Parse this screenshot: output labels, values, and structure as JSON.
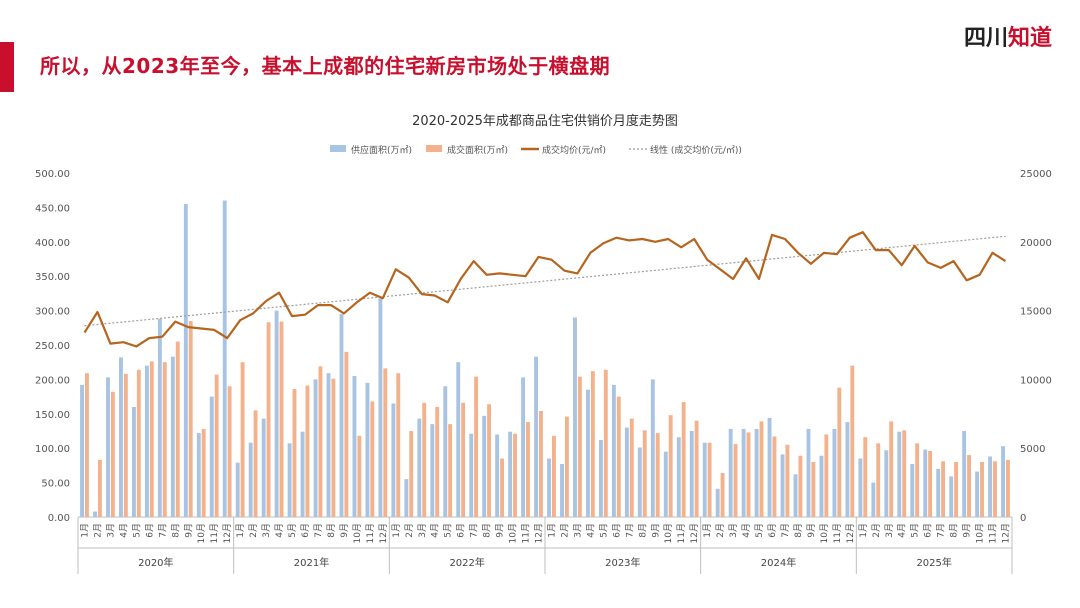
{
  "header": {
    "headline": "所以，从2023年至今，基本上成都的住宅新房市场处于横盘期",
    "logo_main": "四川",
    "logo_accent": "知道"
  },
  "colors": {
    "brand_red": "#c8102e",
    "supply_bar": "#a9c4e2",
    "deal_bar": "#f3b28c",
    "price_line": "#b5651d",
    "trend_line": "#9e9e9e"
  },
  "chart_data": {
    "type": "bar",
    "title": "2020-2025年成都商品住宅供销价月度走势图",
    "legend": [
      "供应面积(万㎡)",
      "成交面积(万㎡)",
      "成交均价(元/㎡)",
      "线性 (成交均价(元/㎡))"
    ],
    "legend_position": "top",
    "y_left": {
      "min": 0,
      "max": 500,
      "ticks": [
        "0.00",
        "50.00",
        "100.00",
        "150.00",
        "200.00",
        "250.00",
        "300.00",
        "350.00",
        "400.00",
        "450.00",
        "500.00"
      ]
    },
    "y_right": {
      "min": 0,
      "max": 25000,
      "ticks": [
        "0",
        "5000",
        "10000",
        "15000",
        "20000",
        "25000"
      ]
    },
    "years": [
      "2020年",
      "2021年",
      "2022年",
      "2023年",
      "2024年",
      "2025年"
    ],
    "months": [
      "1月",
      "2月",
      "3月",
      "4月",
      "5月",
      "6月",
      "7月",
      "8月",
      "9月",
      "10月",
      "11月",
      "12月"
    ],
    "series": [
      {
        "name": "供应面积(万㎡)",
        "axis": "left",
        "kind": "bar",
        "values": [
          192,
          8,
          203,
          232,
          160,
          220,
          288,
          233,
          455,
          122,
          175,
          460,
          79,
          108,
          143,
          300,
          107,
          124,
          200,
          209,
          295,
          205,
          195,
          318,
          165,
          55,
          143,
          135,
          190,
          225,
          121,
          147,
          120,
          124,
          203,
          233,
          85,
          77,
          290,
          185,
          112,
          192,
          130,
          101,
          200,
          95,
          116,
          125,
          108,
          41,
          128,
          128,
          128,
          144,
          91,
          62,
          128,
          89,
          128,
          138,
          85,
          50,
          97,
          124,
          77,
          98,
          70,
          59,
          125,
          66,
          88,
          103
        ]
      },
      {
        "name": "成交面积(万㎡)",
        "axis": "left",
        "kind": "bar",
        "values": [
          209,
          83,
          182,
          208,
          214,
          226,
          225,
          255,
          285,
          128,
          207,
          190,
          225,
          155,
          283,
          284,
          186,
          191,
          219,
          201,
          240,
          118,
          168,
          216,
          209,
          125,
          166,
          160,
          135,
          166,
          204,
          164,
          85,
          121,
          138,
          154,
          118,
          146,
          204,
          212,
          214,
          175,
          143,
          126,
          122,
          148,
          167,
          140,
          108,
          64,
          106,
          123,
          139,
          117,
          105,
          89,
          80,
          120,
          188,
          220,
          116,
          107,
          139,
          126,
          107,
          96,
          81,
          80,
          90,
          80,
          81,
          83
        ]
      },
      {
        "name": "成交均价(元/㎡)",
        "axis": "right",
        "kind": "line",
        "values": [
          13400,
          14900,
          12600,
          12700,
          12400,
          13000,
          13100,
          14200,
          13800,
          13700,
          13600,
          13000,
          14300,
          14800,
          15700,
          16300,
          14600,
          14700,
          15400,
          15400,
          14800,
          15600,
          16300,
          15900,
          18000,
          17400,
          16200,
          16100,
          15600,
          17300,
          18600,
          17600,
          17700,
          17600,
          17500,
          18900,
          18700,
          17900,
          17700,
          19200,
          19900,
          20300,
          20100,
          20200,
          20000,
          20200,
          19600,
          20200,
          18700,
          18000,
          17300,
          18800,
          17300,
          20500,
          20200,
          19200,
          18400,
          19200,
          19100,
          20300,
          20700,
          19400,
          19400,
          18300,
          19700,
          18500,
          18100,
          18600,
          17200,
          17600,
          19200,
          18600
        ]
      },
      {
        "name": "线性 (成交均价(元/㎡))",
        "axis": "right",
        "kind": "trend",
        "values": [
          13900,
          20400
        ]
      }
    ]
  }
}
